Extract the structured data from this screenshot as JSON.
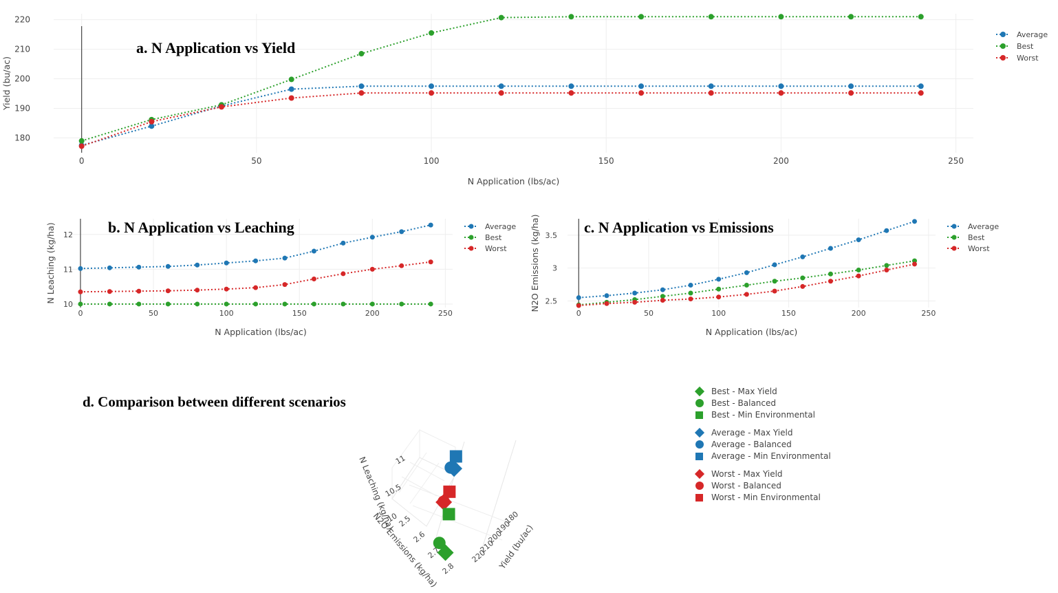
{
  "chart_data": [
    {
      "id": "a",
      "type": "line",
      "title": "a. N Application vs Yield",
      "xlabel": "N Application (lbs/ac)",
      "ylabel": "Yield (bu/ac)",
      "xlim": [
        -8,
        255
      ],
      "ylim": [
        175,
        222
      ],
      "xticks": [
        0,
        50,
        100,
        150,
        200,
        250
      ],
      "yticks": [
        180,
        190,
        200,
        210,
        220
      ],
      "ytick_labels": [
        "180",
        "190",
        "200",
        "210",
        "220"
      ],
      "legend_position": "top-right",
      "x": [
        0,
        20,
        40,
        60,
        80,
        100,
        120,
        140,
        160,
        180,
        200,
        220,
        240
      ],
      "series": [
        {
          "name": "Average",
          "color": "#1f77b4",
          "values": [
            177.5,
            184.0,
            190.8,
            196.5,
            197.5,
            197.5,
            197.5,
            197.5,
            197.5,
            197.5,
            197.5,
            197.5,
            197.5
          ]
        },
        {
          "name": "Best",
          "color": "#2ca02c",
          "values": [
            179.0,
            186.2,
            191.2,
            199.8,
            208.5,
            215.5,
            220.7,
            221.0,
            221.0,
            221.0,
            221.0,
            221.0,
            221.0
          ]
        },
        {
          "name": "Worst",
          "color": "#d62728",
          "values": [
            177.2,
            185.5,
            190.5,
            193.5,
            195.2,
            195.2,
            195.2,
            195.2,
            195.2,
            195.2,
            195.2,
            195.2,
            195.2
          ]
        }
      ]
    },
    {
      "id": "b",
      "type": "line",
      "title": "b. N Application vs Leaching",
      "xlabel": "N Application (lbs/ac)",
      "ylabel": "N Leaching (kg/ha)",
      "xlim": [
        -8,
        255
      ],
      "ylim": [
        9.9,
        12.45
      ],
      "xticks": [
        0,
        50,
        100,
        150,
        200,
        250
      ],
      "yticks": [
        10,
        11,
        12
      ],
      "ytick_labels": [
        "10",
        "11",
        "12"
      ],
      "legend_position": "top-right",
      "x": [
        0,
        20,
        40,
        60,
        80,
        100,
        120,
        140,
        160,
        180,
        200,
        220,
        240
      ],
      "series": [
        {
          "name": "Average",
          "color": "#1f77b4",
          "values": [
            11.02,
            11.04,
            11.06,
            11.08,
            11.12,
            11.18,
            11.24,
            11.32,
            11.52,
            11.75,
            11.92,
            12.08,
            12.27
          ]
        },
        {
          "name": "Best",
          "color": "#2ca02c",
          "values": [
            10.0,
            10.0,
            10.0,
            10.0,
            10.0,
            10.0,
            10.0,
            10.0,
            10.0,
            10.0,
            10.0,
            10.0,
            10.0
          ]
        },
        {
          "name": "Worst",
          "color": "#d62728",
          "values": [
            10.35,
            10.36,
            10.37,
            10.38,
            10.4,
            10.43,
            10.47,
            10.56,
            10.72,
            10.87,
            11.0,
            11.1,
            11.21
          ]
        }
      ]
    },
    {
      "id": "c",
      "type": "line",
      "title": "c. N Application vs Emissions",
      "xlabel": "N Application (lbs/ac)",
      "ylabel": "N2O Emissions (kg/ha)",
      "xlim": [
        -8,
        255
      ],
      "ylim": [
        2.4,
        3.75
      ],
      "xticks": [
        0,
        50,
        100,
        150,
        200,
        250
      ],
      "yticks": [
        2.5,
        3,
        3.5
      ],
      "ytick_labels": [
        "2.5",
        "3",
        "3.5"
      ],
      "legend_position": "top-right",
      "x": [
        0,
        20,
        40,
        60,
        80,
        100,
        120,
        140,
        160,
        180,
        200,
        220,
        240
      ],
      "series": [
        {
          "name": "Average",
          "color": "#1f77b4",
          "values": [
            2.55,
            2.58,
            2.62,
            2.67,
            2.74,
            2.83,
            2.93,
            3.05,
            3.17,
            3.3,
            3.43,
            3.57,
            3.71
          ]
        },
        {
          "name": "Best",
          "color": "#2ca02c",
          "values": [
            2.44,
            2.48,
            2.52,
            2.57,
            2.62,
            2.68,
            2.74,
            2.8,
            2.85,
            2.91,
            2.97,
            3.04,
            3.11
          ]
        },
        {
          "name": "Worst",
          "color": "#d62728",
          "values": [
            2.43,
            2.46,
            2.48,
            2.51,
            2.53,
            2.56,
            2.6,
            2.65,
            2.72,
            2.8,
            2.88,
            2.97,
            3.06
          ]
        }
      ]
    },
    {
      "id": "d",
      "type": "scatter",
      "title": "d. Comparison between different scenarios",
      "axis_titles": {
        "x": "Yield (bu/ac)",
        "y": "N2O Emissions (kg/ha)",
        "z": "N Leaching (kg/ha)"
      },
      "axes": {
        "x": {
          "ticks": [
            180,
            190,
            200,
            210,
            220
          ]
        },
        "y": {
          "ticks": [
            2.5,
            2.6,
            2.7,
            2.8
          ]
        },
        "z": {
          "ticks": [
            10,
            10.5,
            11
          ]
        }
      },
      "series": [
        {
          "name": "Best - Max Yield",
          "color": "#2ca02c",
          "symbol": "diamond",
          "yield": 221.0,
          "n2o": 2.85,
          "leaching": 10.0
        },
        {
          "name": "Best - Balanced",
          "color": "#2ca02c",
          "symbol": "circle",
          "yield": 215.5,
          "n2o": 2.68,
          "leaching": 10.0
        },
        {
          "name": "Best - Min Environmental",
          "color": "#2ca02c",
          "symbol": "square",
          "yield": 179.0,
          "n2o": 2.44,
          "leaching": 10.0
        },
        {
          "name": "Average - Max Yield",
          "color": "#1f77b4",
          "symbol": "diamond",
          "yield": 197.5,
          "n2o": 2.74,
          "leaching": 11.12
        },
        {
          "name": "Average - Balanced",
          "color": "#1f77b4",
          "symbol": "circle",
          "yield": 196.5,
          "n2o": 2.67,
          "leaching": 11.08
        },
        {
          "name": "Average - Min Environmental",
          "color": "#1f77b4",
          "symbol": "square",
          "yield": 177.5,
          "n2o": 2.55,
          "leaching": 11.02
        },
        {
          "name": "Worst - Max Yield",
          "color": "#d62728",
          "symbol": "diamond",
          "yield": 195.2,
          "n2o": 2.53,
          "leaching": 10.4
        },
        {
          "name": "Worst - Balanced",
          "color": "#d62728",
          "symbol": "circle",
          "yield": 193.5,
          "n2o": 2.51,
          "leaching": 10.38
        },
        {
          "name": "Worst - Min Environmental",
          "color": "#d62728",
          "symbol": "square",
          "yield": 177.2,
          "n2o": 2.43,
          "leaching": 10.35
        }
      ]
    }
  ]
}
